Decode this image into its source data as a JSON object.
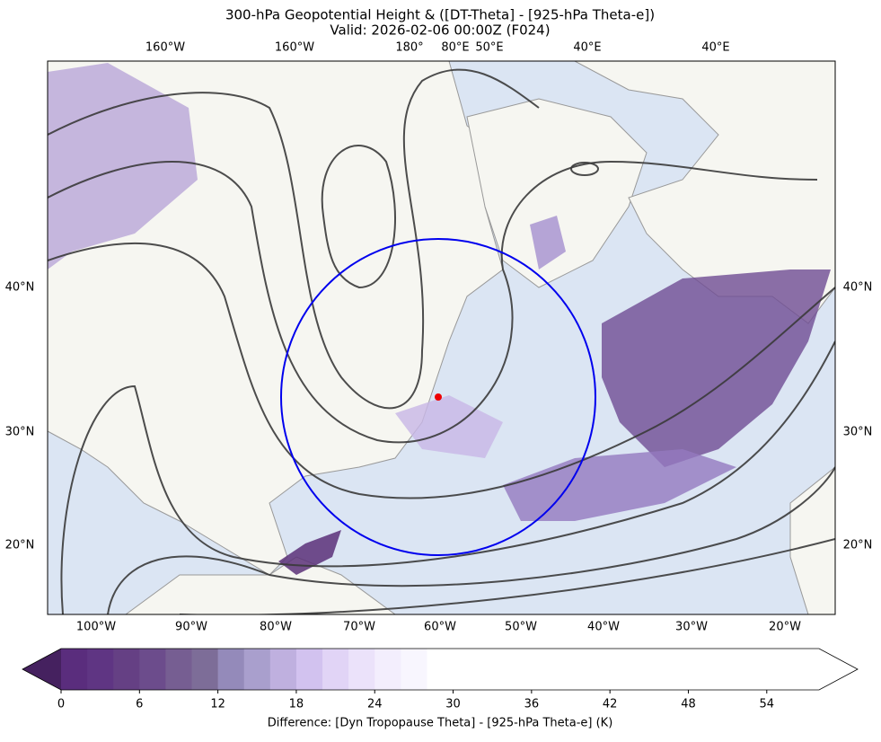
{
  "title": "300-hPa Geopotential Height & ([DT-Theta] - [925-hPa Theta-e])",
  "subtitle": "Valid: 2026-02-06 00:00Z (F024)",
  "map": {
    "top_labels": [
      "160°W",
      "160°W",
      "180°",
      "80°E",
      "50°E",
      "40°E",
      "40°E"
    ],
    "bottom_labels": [
      "100°W",
      "90°W",
      "80°W",
      "70°W",
      "60°W",
      "50°W",
      "40°W",
      "30°W",
      "20°W"
    ],
    "left_labels": [
      "40°N",
      "30°N",
      "20°N"
    ],
    "right_labels": [
      "40°N",
      "30°N",
      "20°N"
    ]
  },
  "colorbar": {
    "lim": [
      0,
      58
    ],
    "ticks": [
      0,
      6,
      12,
      18,
      24,
      30,
      36,
      42,
      48,
      54
    ],
    "colors": [
      "#5a2d7d",
      "#5f3583",
      "#654084",
      "#6c4c8c",
      "#765e92",
      "#7d6d98",
      "#948aba",
      "#a99fcd",
      "#bfb0df",
      "#d2c2ef",
      "#e1d4f6",
      "#ebe2fa",
      "#f3eefd",
      "#f8f6fe",
      "#ffffff",
      "#ffffff",
      "#ffffff",
      "#ffffff",
      "#ffffff",
      "#ffffff",
      "#ffffff",
      "#ffffff",
      "#ffffff",
      "#ffffff",
      "#ffffff",
      "#ffffff",
      "#ffffff",
      "#ffffff",
      "#ffffff"
    ],
    "under_color": "#45215f",
    "label": "Difference: [Dyn Tropopause Theta] - [925-hPa Theta-e] (K)"
  }
}
